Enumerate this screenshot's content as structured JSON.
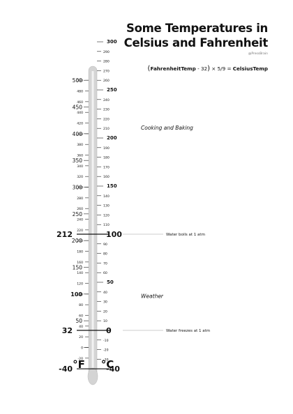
{
  "title": "Some Temperatures in Celsius and Fahrenheit",
  "credit": "@PressBrain",
  "formula": {
    "open": "(",
    "left": "FahrenheitTemp",
    "mid": " - 32",
    "close": ")",
    "rest": " × 5/9 = ",
    "right": "CelsiusTemp"
  },
  "units": {
    "fahrenheit": "°F",
    "celsius": "°C"
  },
  "celsius_scale": {
    "min": -40,
    "max": 300,
    "major_step": 50,
    "minor_step": 10
  },
  "fahrenheit_scale": {
    "min": -40,
    "max": 500,
    "major_step": 50,
    "minor_step": 20
  },
  "key_points": [
    {
      "f": "212",
      "c": "100",
      "note": "Water boils at 1 atm"
    },
    {
      "f": "32",
      "c": "0",
      "note": "Water freezes at 1 atm"
    },
    {
      "f": "-40",
      "c": "-40",
      "note": ""
    }
  ],
  "regions": [
    {
      "label": "Cooking and Baking",
      "c": 210
    },
    {
      "label": "Weather",
      "c": 35
    }
  ],
  "colors": {
    "tube": "#d4d4d4",
    "tube_edge": "#b8b8b8",
    "ink": "#111111",
    "callout": "#9a9a9a"
  }
}
